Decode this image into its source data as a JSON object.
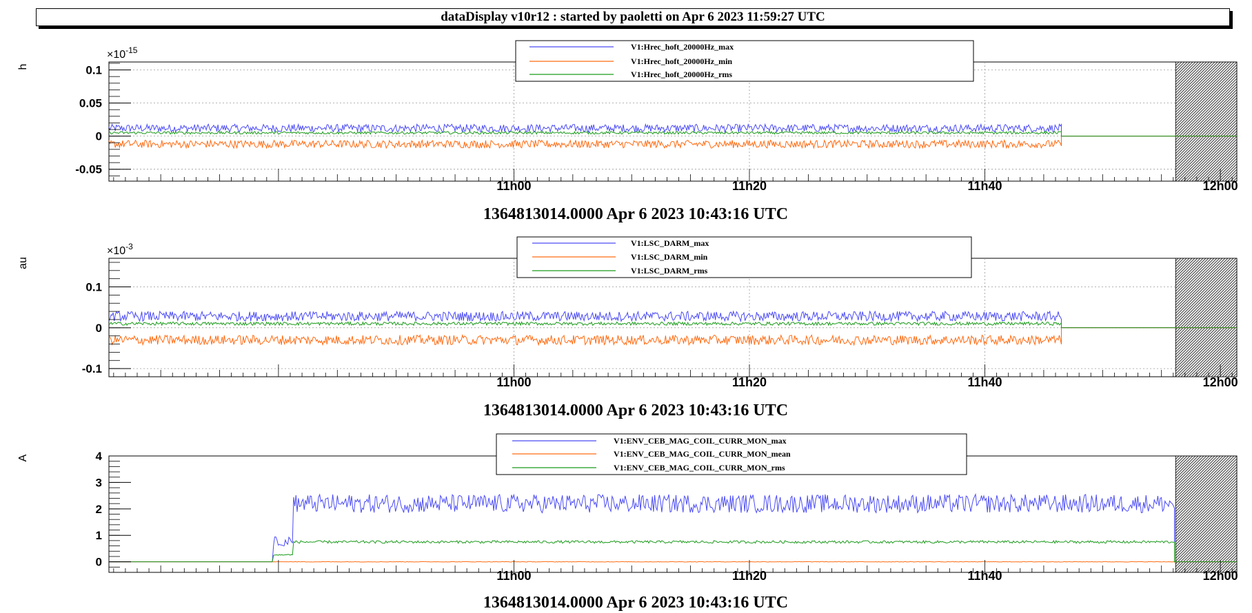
{
  "window": {
    "title": "dataDisplay v10r12 : started by paoletti on Apr  6 2023 11:59:27 UTC"
  },
  "colors": {
    "max": "#4a4af5",
    "min": "#ff6a10",
    "rms": "#1a9a1a",
    "hatch": "#6a6a6a"
  },
  "chart_data": [
    {
      "type": "line",
      "ylabel": "h",
      "yexponent": "×10",
      "yexponent_power": "-15",
      "ylim": [
        -0.068,
        0.112
      ],
      "yticks": [
        0.1,
        0.05,
        0,
        -0.05
      ],
      "ytick_labels": [
        "0.1",
        "0.05",
        "0",
        "-0.05"
      ],
      "xlim_min": [
        -17.4,
        78.4
      ],
      "xticks_min": [
        17,
        37,
        57,
        77
      ],
      "xtick_labels": [
        "11h00",
        "11h20",
        "11h40",
        "12h00"
      ],
      "xlabel": "1364813014.0000 Apr 6 2023 10:43:16 UTC",
      "grid": true,
      "legend_position": "top-center",
      "data_end_min": 63.5,
      "hatch_start_min": 73.2,
      "series": [
        {
          "name": "V1:Hrec_hoft_20000Hz_max",
          "color": "max",
          "level": 0.012,
          "noise": 0.006,
          "flat_after": 0
        },
        {
          "name": "V1:Hrec_hoft_20000Hz_min",
          "color": "min",
          "level": -0.012,
          "noise": 0.006,
          "flat_after": 0
        },
        {
          "name": "V1:Hrec_hoft_20000Hz_rms",
          "color": "rms",
          "level": 0.005,
          "noise": 0.002,
          "flat_after": 0
        }
      ]
    },
    {
      "type": "line",
      "ylabel": "au",
      "yexponent": "×10",
      "yexponent_power": "-3",
      "ylim": [
        -0.12,
        0.17
      ],
      "yticks": [
        0.1,
        0,
        -0.1
      ],
      "ytick_labels": [
        "0.1",
        "0",
        "-0.1"
      ],
      "xlim_min": [
        -17.4,
        78.4
      ],
      "xticks_min": [
        17,
        37,
        57,
        77
      ],
      "xtick_labels": [
        "11h00",
        "11h20",
        "11h40",
        "12h00"
      ],
      "xlabel": "1364813014.0000 Apr 6 2023 10:43:16 UTC",
      "grid": true,
      "legend_position": "top-center",
      "data_end_min": 63.5,
      "hatch_start_min": 73.2,
      "series": [
        {
          "name": "V1:LSC_DARM_max",
          "color": "max",
          "level": 0.028,
          "noise": 0.012,
          "flat_after": 0
        },
        {
          "name": "V1:LSC_DARM_min",
          "color": "min",
          "level": -0.03,
          "noise": 0.012,
          "flat_after": 0
        },
        {
          "name": "V1:LSC_DARM_rms",
          "color": "rms",
          "level": 0.01,
          "noise": 0.004,
          "flat_after": 0
        }
      ]
    },
    {
      "type": "line",
      "ylabel": "A",
      "ylim": [
        -0.4,
        4.0
      ],
      "yticks": [
        4,
        3,
        2,
        1,
        0
      ],
      "ytick_labels": [
        "4",
        "3",
        "2",
        "1",
        "0"
      ],
      "xlim_min": [
        -17.4,
        78.4
      ],
      "xticks_min": [
        17,
        37,
        57,
        77
      ],
      "xtick_labels": [
        "11h00",
        "11h20",
        "11h40",
        "12h00"
      ],
      "xlabel": "1364813014.0000 Apr 6 2023 10:43:16 UTC",
      "grid": false,
      "legend_position": "top-center",
      "data_end_min": 73.1,
      "hatch_start_min": 73.2,
      "series": [
        {
          "name": "V1:ENV_CEB_MAG_COIL_CURR_MON_max",
          "color": "max",
          "level": 2.2,
          "noise": 0.35,
          "flat_after": 0
        },
        {
          "name": "V1:ENV_CEB_MAG_COIL_CURR_MON_mean",
          "color": "min",
          "level": 0.0,
          "noise": 0.01,
          "flat_after": 0
        },
        {
          "name": "V1:ENV_CEB_MAG_COIL_CURR_MON_rms",
          "color": "rms",
          "level": 0.75,
          "noise": 0.05,
          "flat_after": 0
        }
      ]
    }
  ]
}
